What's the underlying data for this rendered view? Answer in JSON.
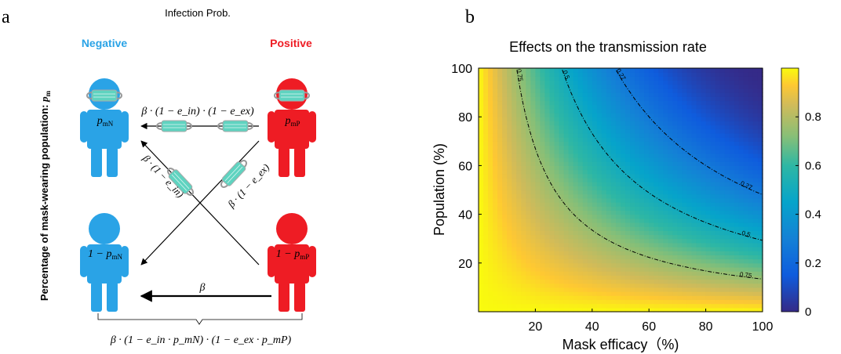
{
  "panel_a": {
    "label": "a",
    "title": "Infection Prob.",
    "negative_label": "Negative",
    "positive_label": "Positive",
    "y_label": "Percentage of mask-wearing population:",
    "y_label_symbol": "p",
    "y_label_sub": "m",
    "person_labels": {
      "top_left": {
        "main": "p",
        "sub": "mN"
      },
      "top_right": {
        "main": "p",
        "sub": "mP"
      },
      "bottom_left": {
        "main": "1 − p",
        "sub": "mN"
      },
      "bottom_right": {
        "main": "1 − p",
        "sub": "mP"
      }
    },
    "formulas": {
      "top": "β · (1 − e_in) · (1 − e_ex)",
      "diag_left": "β · (1 − e_in)",
      "diag_right": "β · (1 − e_ex)",
      "bottom": "β",
      "brace": "β · (1 − e_in · p_mN) · (1 − e_ex · p_mP)"
    },
    "colors": {
      "negative": "#2aa3e6",
      "positive": "#ee1c24",
      "mask": "#5fd3c0"
    }
  },
  "panel_b": {
    "label": "b"
  },
  "chart_data": {
    "type": "heatmap",
    "title": "Effects on the transmission rate",
    "xlabel": "Mask efficacy（%)",
    "ylabel": "Population (%)",
    "xlim": [
      0,
      100
    ],
    "ylim": [
      0,
      100
    ],
    "x_ticks": [
      20,
      40,
      60,
      80,
      100
    ],
    "y_ticks": [
      20,
      40,
      60,
      80,
      100
    ],
    "colorbar": {
      "ticks": [
        0,
        0.2,
        0.4,
        0.6,
        0.8
      ],
      "range": [
        0,
        1
      ],
      "colormap": "parula"
    },
    "contours": [
      {
        "level": 0.75,
        "label": "0.75"
      },
      {
        "level": 0.5,
        "label": "0.5"
      },
      {
        "level": 0.27,
        "label": "0.27"
      }
    ]
  }
}
